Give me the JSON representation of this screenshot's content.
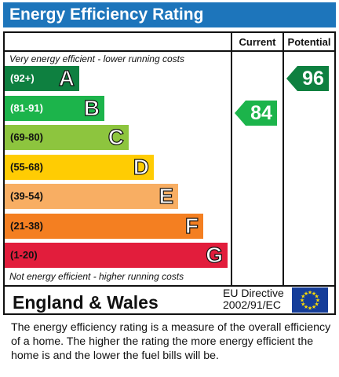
{
  "header": {
    "title": "Energy Efficiency Rating"
  },
  "columns": {
    "current": "Current",
    "potential": "Potential"
  },
  "notes": {
    "top": "Very energy efficient - lower running costs",
    "bottom": "Not energy efficient - higher running costs"
  },
  "chart_data": {
    "type": "bar",
    "title": "Energy Efficiency Rating",
    "bands": [
      {
        "letter": "A",
        "range": "(92+)",
        "color": "#0e8040",
        "text_color": "#ffffff"
      },
      {
        "letter": "B",
        "range": "(81-91)",
        "color": "#1cb44b",
        "text_color": "#ffffff"
      },
      {
        "letter": "C",
        "range": "(69-80)",
        "color": "#8dc53e",
        "text_color": "#111111"
      },
      {
        "letter": "D",
        "range": "(55-68)",
        "color": "#ffcc03",
        "text_color": "#111111"
      },
      {
        "letter": "E",
        "range": "(39-54)",
        "color": "#f8ae63",
        "text_color": "#111111"
      },
      {
        "letter": "F",
        "range": "(21-38)",
        "color": "#f47f21",
        "text_color": "#111111"
      },
      {
        "letter": "G",
        "range": "(1-20)",
        "color": "#e21d3c",
        "text_color": "#111111"
      }
    ],
    "current": {
      "value": 84,
      "band": "B",
      "color": "#1cb44b"
    },
    "potential": {
      "value": 96,
      "band": "A",
      "color": "#0e8040"
    }
  },
  "footer": {
    "region": "England & Wales",
    "directive_line1": "EU Directive",
    "directive_line2": "2002/91/EC"
  },
  "description": "The energy efficiency rating is a measure of the overall efficiency of a home.  The higher the rating the more energy efficient the home is and the lower the fuel bills will be."
}
